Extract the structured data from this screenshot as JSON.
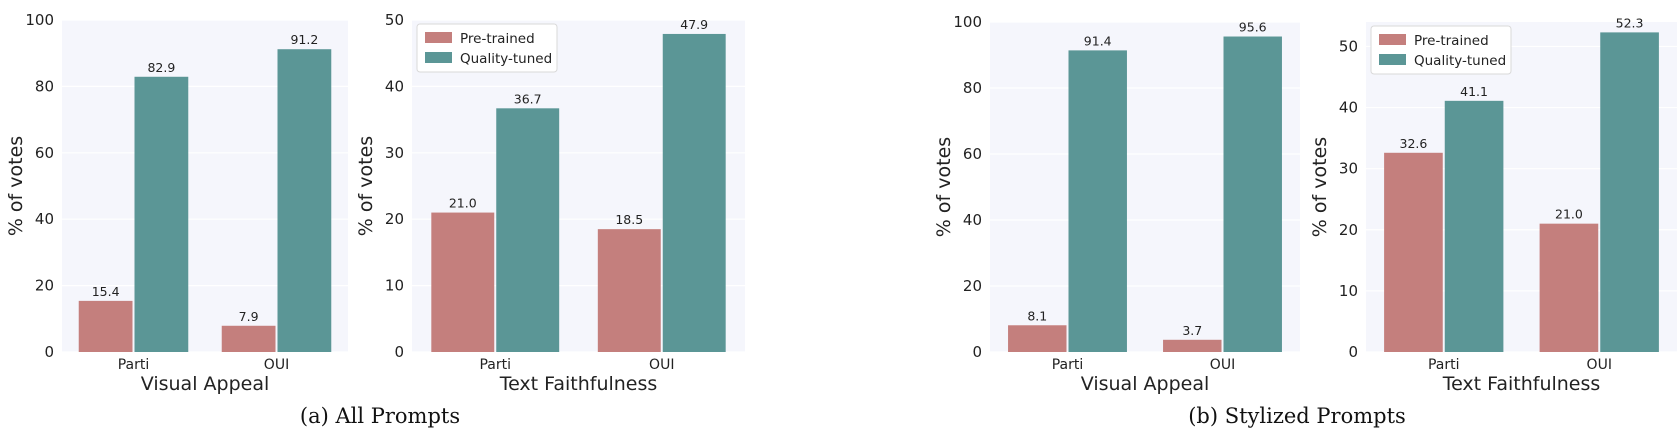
{
  "captions": {
    "a": "(a) All Prompts",
    "b": "(b) Stylized Prompts"
  },
  "colors": {
    "pretrained": "#c47f7d",
    "quality_tuned": "#5b9696",
    "plot_bg": "#f5f6fc",
    "grid": "#ffffff"
  },
  "chart_data": [
    {
      "type": "bar",
      "group": "a",
      "categories": [
        "Parti",
        "OUI"
      ],
      "series": [
        {
          "name": "Pre-trained",
          "values": [
            15.4,
            7.9
          ],
          "labels": [
            "15.4",
            "7.9"
          ]
        },
        {
          "name": "Quality-tuned",
          "values": [
            82.9,
            91.2
          ],
          "labels": [
            "82.9",
            "91.2"
          ]
        }
      ],
      "xlabel": "Visual Appeal",
      "ylabel": "% of votes",
      "ylim": [
        0,
        100
      ],
      "yticks": [
        0,
        20,
        40,
        60,
        80,
        100
      ],
      "legend": null,
      "grid": true
    },
    {
      "type": "bar",
      "group": "a",
      "categories": [
        "Parti",
        "OUI"
      ],
      "series": [
        {
          "name": "Pre-trained",
          "values": [
            21.0,
            18.5
          ],
          "labels": [
            "21.0",
            "18.5"
          ]
        },
        {
          "name": "Quality-tuned",
          "values": [
            36.7,
            47.9
          ],
          "labels": [
            "36.7",
            "47.9"
          ]
        }
      ],
      "xlabel": "Text Faithfulness",
      "ylabel": "% of votes",
      "ylim": [
        0,
        50
      ],
      "yticks": [
        0,
        10,
        20,
        30,
        40,
        50
      ],
      "legend": "top-left",
      "grid": true
    },
    {
      "type": "bar",
      "group": "b",
      "categories": [
        "Parti",
        "OUI"
      ],
      "series": [
        {
          "name": "Pre-trained",
          "values": [
            8.1,
            3.7
          ],
          "labels": [
            "8.1",
            "3.7"
          ]
        },
        {
          "name": "Quality-tuned",
          "values": [
            91.4,
            95.6
          ],
          "labels": [
            "91.4",
            "95.6"
          ]
        }
      ],
      "xlabel": "Visual Appeal",
      "ylabel": "% of votes",
      "ylim": [
        0,
        100
      ],
      "yticks": [
        0,
        20,
        40,
        60,
        80,
        100
      ],
      "legend": null,
      "grid": true
    },
    {
      "type": "bar",
      "group": "b",
      "categories": [
        "Parti",
        "OUI"
      ],
      "series": [
        {
          "name": "Pre-trained",
          "values": [
            32.6,
            21.0
          ],
          "labels": [
            "32.6",
            "21.0"
          ]
        },
        {
          "name": "Quality-tuned",
          "values": [
            41.1,
            52.3
          ],
          "labels": [
            "41.1",
            "52.3"
          ]
        }
      ],
      "xlabel": "Text Faithfulness",
      "ylabel": "% of votes",
      "ylim": [
        0,
        54
      ],
      "yticks": [
        0,
        10,
        20,
        30,
        40,
        50
      ],
      "legend": "top-left",
      "grid": true
    }
  ]
}
